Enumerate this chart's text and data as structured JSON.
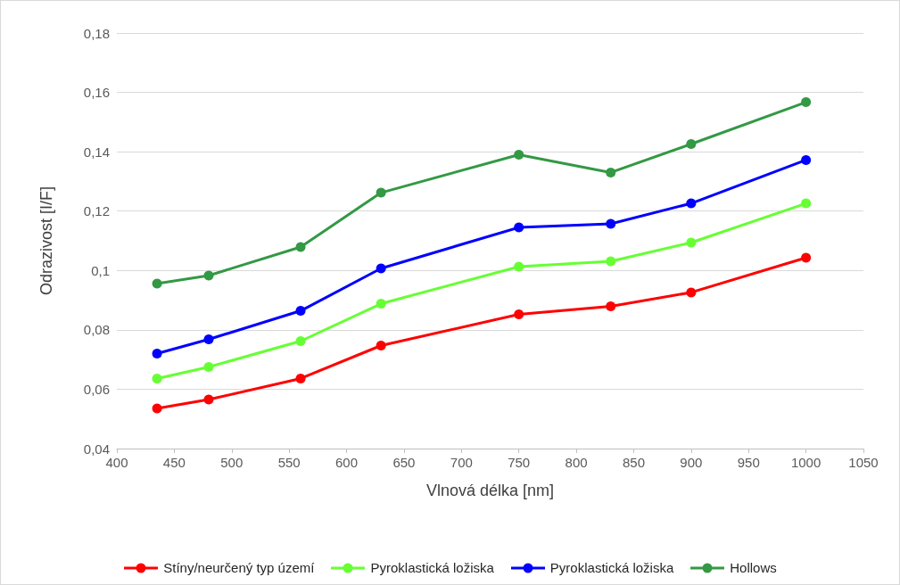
{
  "chart_data": {
    "type": "line",
    "xlabel": "Vlnová délka [nm]",
    "ylabel": "Odrazivost [I/F]",
    "x": [
      435,
      480,
      560,
      630,
      750,
      830,
      900,
      1000
    ],
    "series": [
      {
        "name": "Stíny/neurčený typ území",
        "color": "#ff0000",
        "values": [
          0.0535,
          0.0565,
          0.0636,
          0.0747,
          0.0852,
          0.0879,
          0.0926,
          0.1043
        ]
      },
      {
        "name": "Pyroklastická ložiska",
        "color": "#66ff33",
        "values": [
          0.0636,
          0.0675,
          0.0762,
          0.0888,
          0.1013,
          0.1031,
          0.1094,
          0.1226
        ]
      },
      {
        "name": "Pyroklastická ložiska",
        "color": "#0000ff",
        "values": [
          0.072,
          0.0768,
          0.0864,
          0.1007,
          0.1145,
          0.1157,
          0.1226,
          0.1372
        ]
      },
      {
        "name": "Hollows",
        "color": "#339944",
        "values": [
          0.0956,
          0.0983,
          0.1079,
          0.1262,
          0.139,
          0.133,
          0.1426,
          0.1567
        ]
      }
    ],
    "xlim": [
      400,
      1050
    ],
    "xticks": [
      400,
      450,
      500,
      550,
      600,
      650,
      700,
      750,
      800,
      850,
      900,
      950,
      1000,
      1050
    ],
    "ylim": [
      0.04,
      0.18
    ],
    "yticks": [
      {
        "value": 0.04,
        "label": "0,04"
      },
      {
        "value": 0.06,
        "label": "0,06"
      },
      {
        "value": 0.08,
        "label": "0,08"
      },
      {
        "value": 0.1,
        "label": "0,1"
      },
      {
        "value": 0.12,
        "label": "0,12"
      },
      {
        "value": 0.14,
        "label": "0,14"
      },
      {
        "value": 0.16,
        "label": "0,16"
      },
      {
        "value": 0.18,
        "label": "0,18"
      }
    ],
    "grid": "y",
    "legend": "bottom",
    "marker": "circle",
    "line_style": "solid"
  }
}
